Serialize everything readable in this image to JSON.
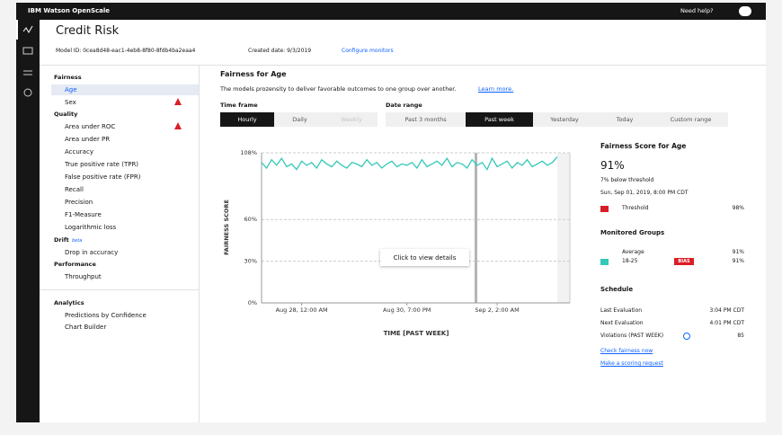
{
  "header": {
    "brand": "IBM Watson OpenScale",
    "help": "Need help?"
  },
  "page": {
    "title": "Credit Risk",
    "model_id": "Model ID: 0cea8d48-eac1-4eb8-8f80-8fdb4ba2eaa4",
    "created": "Created date: 9/3/2019",
    "configure": "Configure monitors"
  },
  "sidebar": {
    "fairness": "Fairness",
    "fairness_items": [
      "Age",
      "Sex"
    ],
    "quality": "Quality",
    "quality_items": [
      "Area under ROC",
      "Area under PR",
      "Accuracy",
      "True positive rate (TPR)",
      "False positive rate (FPR)",
      "Recall",
      "Precision",
      "F1-Measure",
      "Logarithmic loss"
    ],
    "drift": "Drift",
    "drift_tag": "beta",
    "drift_items": [
      "Drop in accuracy"
    ],
    "performance": "Performance",
    "performance_items": [
      "Throughput"
    ],
    "analytics": "Analytics",
    "analytics_items": [
      "Predictions by Confidence",
      "Chart Builder"
    ]
  },
  "content": {
    "heading": "Fairness for Age",
    "description": "The models prozensity to deliver favorable outcomes to one group over another.",
    "learn_more": "Learn more.",
    "time_frame": "Time frame",
    "time_options": [
      "Hourly",
      "Daily",
      "Weekly"
    ],
    "date_range": "Date range",
    "date_options": [
      "Past 3 months",
      "Past week",
      "Yesterday",
      "Today",
      "Custom range"
    ]
  },
  "chart_data": {
    "type": "line",
    "y_label": "FAIRNESS SCORE",
    "x_label": "TIME [PAST WEEK]",
    "annotation": "Click to view details",
    "color": "#33c9b8",
    "categories": [
      null,
      null,
      null,
      null,
      null,
      null,
      null,
      null,
      "Aug 28, 12:00 AM",
      null,
      null,
      null,
      null,
      null,
      null,
      null,
      null,
      null,
      null,
      null,
      null,
      null,
      null,
      null,
      null,
      null,
      null,
      null,
      null,
      "Aug 30, 7:00 PM",
      null,
      null,
      null,
      null,
      null,
      null,
      null,
      null,
      null,
      null,
      null,
      null,
      null,
      null,
      null,
      null,
      null,
      "Sep 2, 2:00 AM",
      null,
      null,
      null,
      null,
      null,
      null,
      null,
      null,
      null,
      null,
      null,
      null
    ],
    "values": [
      101,
      97,
      103,
      99,
      104,
      98,
      100,
      96,
      102,
      99,
      101,
      97,
      103,
      100,
      98,
      102,
      99,
      97,
      101,
      100,
      98,
      103,
      99,
      101,
      97,
      100,
      102,
      98,
      100,
      99,
      101,
      97,
      103,
      98,
      100,
      102,
      99,
      104,
      98,
      101,
      100,
      97,
      103,
      99,
      101,
      96,
      104,
      98,
      100,
      102,
      97,
      101,
      99,
      103,
      98,
      100,
      102,
      99,
      101,
      105
    ],
    "ylim": [
      0,
      108
    ],
    "yticks": [
      {
        "value": 0,
        "label": "0%"
      },
      {
        "value": 30,
        "label": "30%"
      },
      {
        "value": 60,
        "label": "60%"
      },
      {
        "value": 108,
        "label": "108%"
      }
    ],
    "grid": true
  },
  "panel": {
    "title": "Fairness Score for Age",
    "score": "91%",
    "below": "7% below threshold",
    "date": "Sun, Sep 01, 2019, 8:00 PM CDT",
    "threshold_label": "Threshold",
    "threshold_value": "98%",
    "groups_title": "Monitored Groups",
    "average_label": "Average",
    "average_value": "91%",
    "group_label": "18-25",
    "bias": "BIAS",
    "group_value": "91%",
    "schedule_title": "Schedule",
    "last_label": "Last Evaluation",
    "last_value": "3:04 PM CDT",
    "next_label": "Next Evaluation",
    "next_value": "4:01 PM CDT",
    "violations_label": "Violations (PAST WEEK)",
    "violations_value": "85",
    "check": "Check fairness now",
    "scoring": "Make a scoring request"
  }
}
